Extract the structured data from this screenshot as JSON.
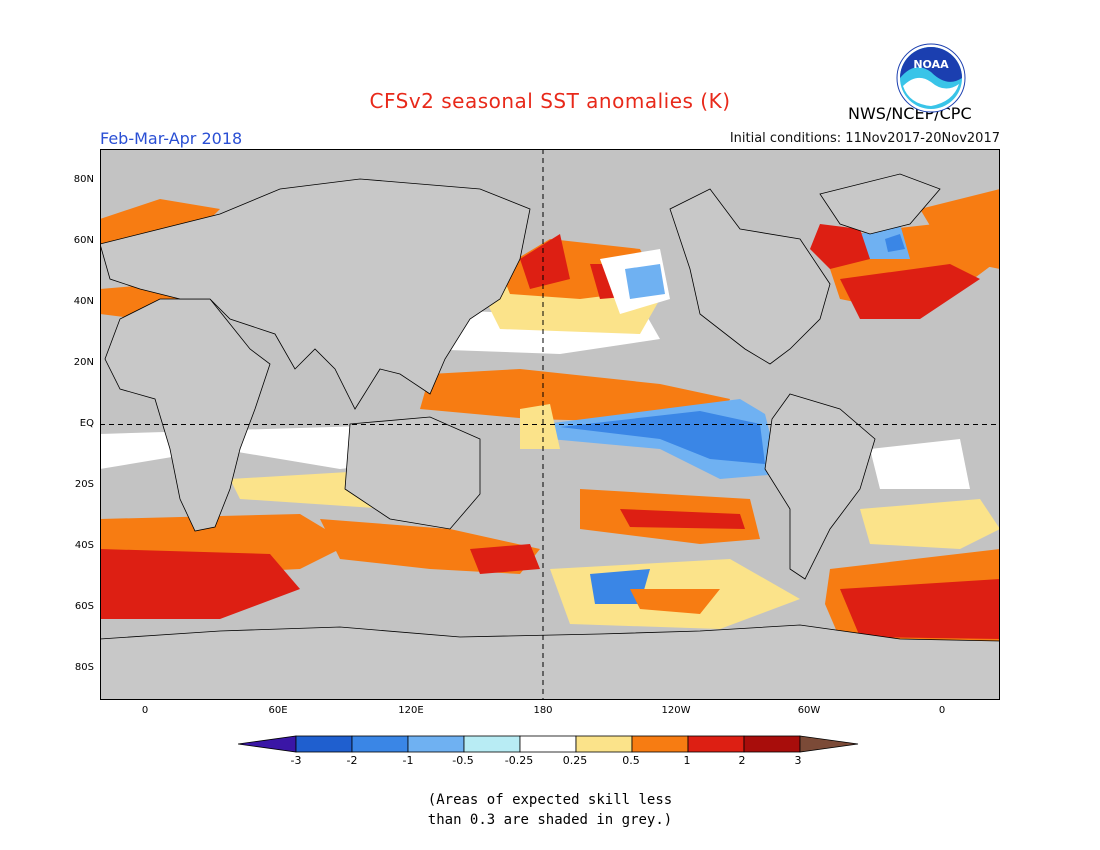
{
  "title": "CFSv2 seasonal SST anomalies (K)",
  "period": "Feb-Mar-Apr 2018",
  "initial_conditions": "Initial conditions: 11Nov2017-20Nov2017",
  "agency": "NWS/NCEP/CPC",
  "logo_text": "NOAA",
  "note_line1": "(Areas of expected skill less",
  "note_line2": "than 0.3 are shaded in grey.)",
  "lat_labels": [
    "80N",
    "60N",
    "40N",
    "20N",
    "EQ",
    "20S",
    "40S",
    "60S",
    "80S"
  ],
  "lon_labels": [
    "0",
    "60E",
    "120E",
    "180",
    "120W",
    "60W",
    "0"
  ],
  "colorbar": {
    "labels": [
      "-3",
      "-2",
      "-1",
      "-0.5",
      "-0.25",
      "0.25",
      "0.5",
      "1",
      "2",
      "3"
    ],
    "colors": [
      "#3a16a6",
      "#1f5fcf",
      "#3a86e6",
      "#6fb1f2",
      "#b8ecf4",
      "#ffffff",
      "#fbe38a",
      "#f77c12",
      "#dd1f13",
      "#a80d0b",
      "#7b4a37"
    ]
  },
  "colors": {
    "land": "#c8c8c8",
    "grey_ocean": "#c3c3c3",
    "title": "#e8291a",
    "period": "#2a4fd4",
    "logo_blue": "#1b3fb0",
    "logo_cyan": "#39c4e8"
  }
}
